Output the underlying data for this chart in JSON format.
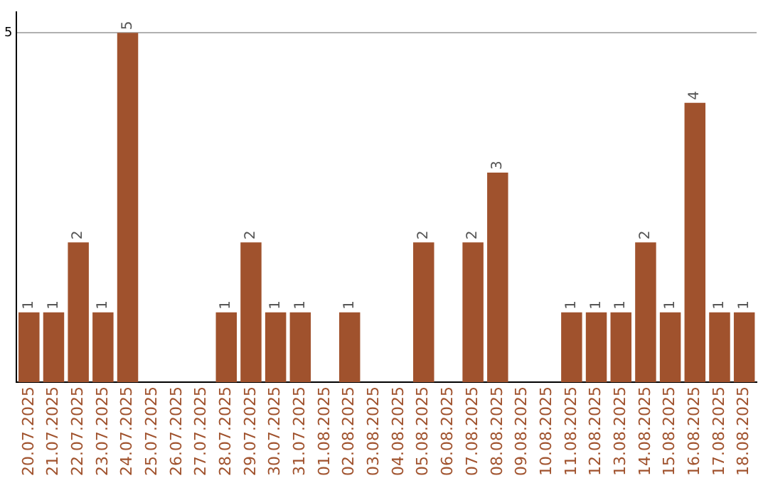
{
  "chart_data": {
    "type": "bar",
    "categories": [
      "20.07.2025",
      "21.07.2025",
      "22.07.2025",
      "23.07.2025",
      "24.07.2025",
      "25.07.2025",
      "26.07.2025",
      "27.07.2025",
      "28.07.2025",
      "29.07.2025",
      "30.07.2025",
      "31.07.2025",
      "01.08.2025",
      "02.08.2025",
      "03.08.2025",
      "04.08.2025",
      "05.08.2025",
      "06.08.2025",
      "07.08.2025",
      "08.08.2025",
      "09.08.2025",
      "10.08.2025",
      "11.08.2025",
      "12.08.2025",
      "13.08.2025",
      "14.08.2025",
      "15.08.2025",
      "16.08.2025",
      "17.08.2025",
      "18.08.2025"
    ],
    "values": [
      1,
      1,
      2,
      1,
      5,
      0,
      0,
      0,
      1,
      2,
      1,
      1,
      0,
      1,
      0,
      0,
      2,
      0,
      2,
      3,
      0,
      0,
      1,
      1,
      1,
      2,
      1,
      4,
      1,
      1
    ],
    "value_labels": [
      "1",
      "1",
      "2",
      "1",
      "5",
      null,
      null,
      null,
      "1",
      "2",
      "1",
      "1",
      null,
      "1",
      null,
      null,
      "2",
      null,
      "2",
      "3",
      null,
      null,
      "1",
      "1",
      "1",
      "2",
      "1",
      "4",
      "1",
      "1"
    ],
    "color": "#a0522d",
    "ylim": [
      0,
      5.3
    ],
    "yticks": [
      5
    ],
    "grid": "y",
    "legend": false
  }
}
